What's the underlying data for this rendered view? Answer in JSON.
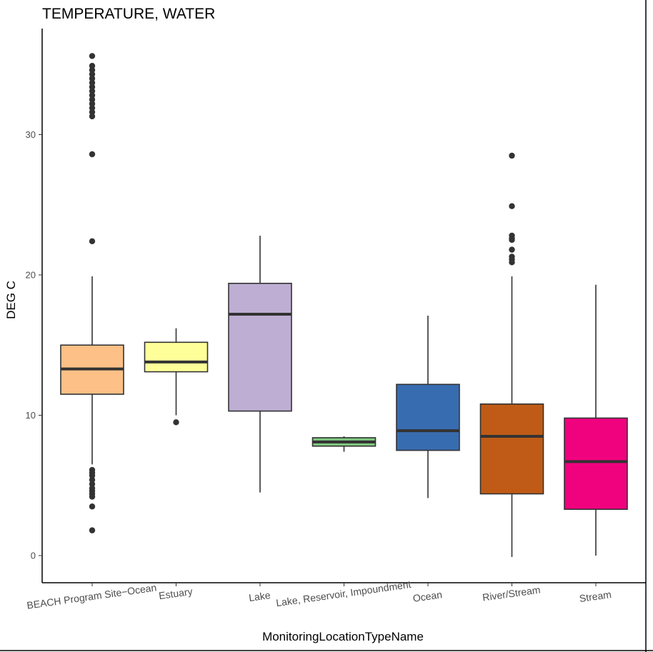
{
  "chart_data": {
    "type": "boxplot",
    "title": "TEMPERATURE, WATER",
    "xlabel": "MonitoringLocationTypeName",
    "ylabel": "DEG C",
    "ylim": [
      -2,
      38
    ],
    "yticks": [
      0,
      10,
      20,
      30
    ],
    "grid": false,
    "legend": "none",
    "categories": [
      "BEACH Program Site−Ocean",
      "Estuary",
      "Lake",
      "Lake, Reservoir, Impoundment",
      "Ocean",
      "River/Stream",
      "Stream"
    ],
    "boxes": [
      {
        "category": "BEACH Program Site−Ocean",
        "whisker_low": 6.5,
        "q1": 11.5,
        "median": 13.3,
        "q3": 15.0,
        "whisker_high": 19.9,
        "color": "#FDC086",
        "outliers": [
          1.8,
          3.5,
          4.2,
          4.4,
          4.6,
          4.8,
          5.1,
          5.4,
          5.7,
          5.9,
          6.1,
          22.4,
          28.6,
          31.3,
          31.6,
          31.9,
          32.2,
          32.5,
          32.8,
          33.1,
          33.4,
          33.7,
          34.0,
          34.3,
          34.6,
          34.9,
          35.6
        ]
      },
      {
        "category": "Estuary",
        "whisker_low": 10.0,
        "q1": 13.1,
        "median": 13.8,
        "q3": 15.2,
        "whisker_high": 16.2,
        "color": "#FFFF99",
        "outliers": [
          9.5
        ]
      },
      {
        "category": "Lake",
        "whisker_low": 4.5,
        "q1": 10.3,
        "median": 17.2,
        "q3": 19.4,
        "whisker_high": 22.8,
        "color": "#BEAED4",
        "outliers": []
      },
      {
        "category": "Lake, Reservoir, Impoundment",
        "whisker_low": 7.4,
        "q1": 7.8,
        "median": 8.1,
        "q3": 8.4,
        "whisker_high": 8.5,
        "color": "#7FC97F",
        "outliers": []
      },
      {
        "category": "Ocean",
        "whisker_low": 4.1,
        "q1": 7.5,
        "median": 8.9,
        "q3": 12.2,
        "whisker_high": 17.1,
        "color": "#386CB0",
        "outliers": []
      },
      {
        "category": "River/Stream",
        "whisker_low": -0.1,
        "q1": 4.4,
        "median": 8.5,
        "q3": 10.8,
        "whisker_high": 19.9,
        "color": "#BF5B17",
        "outliers": [
          20.9,
          21.1,
          21.3,
          21.8,
          22.5,
          22.6,
          22.8,
          24.9,
          28.5
        ]
      },
      {
        "category": "Stream",
        "whisker_low": 0.0,
        "q1": 3.3,
        "median": 6.7,
        "q3": 9.8,
        "whisker_high": 19.3,
        "color": "#F0027F",
        "outliers": []
      }
    ]
  }
}
